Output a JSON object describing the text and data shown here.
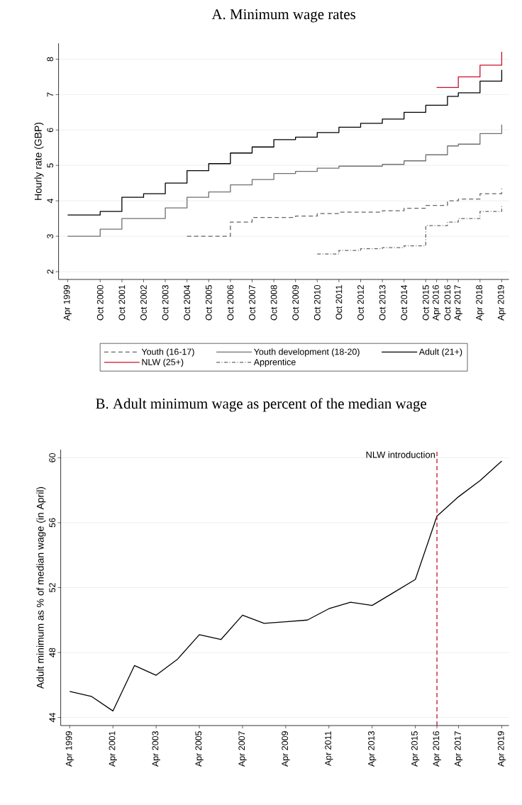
{
  "chart_data": [
    {
      "type": "step",
      "title": "A. Minimum wage rates",
      "ylabel": "Hourly rate (GBP)",
      "xlim": [
        "1998-11",
        "2019-08"
      ],
      "ylim": [
        1.78,
        8.45
      ],
      "yticks": [
        2,
        3,
        4,
        5,
        6,
        7,
        8
      ],
      "xticks": [
        {
          "value": "1999-04",
          "label": "Apr 1999"
        },
        {
          "value": "2000-10",
          "label": "Oct 2000"
        },
        {
          "value": "2001-10",
          "label": "Oct 2001"
        },
        {
          "value": "2002-10",
          "label": "Oct 2002"
        },
        {
          "value": "2003-10",
          "label": "Oct 2003"
        },
        {
          "value": "2004-10",
          "label": "Oct 2004"
        },
        {
          "value": "2005-10",
          "label": "Oct 2005"
        },
        {
          "value": "2006-10",
          "label": "Oct 2006"
        },
        {
          "value": "2007-10",
          "label": "Oct 2007"
        },
        {
          "value": "2008-10",
          "label": "Oct 2008"
        },
        {
          "value": "2009-10",
          "label": "Oct 2009"
        },
        {
          "value": "2010-10",
          "label": "Oct 2010"
        },
        {
          "value": "2011-10",
          "label": "Oct 2011"
        },
        {
          "value": "2012-10",
          "label": "Oct 2012"
        },
        {
          "value": "2013-10",
          "label": "Oct 2013"
        },
        {
          "value": "2014-10",
          "label": "Oct 2014"
        },
        {
          "value": "2015-10",
          "label": "Oct 2015"
        },
        {
          "value": "2016-04",
          "label": "Apr 2016"
        },
        {
          "value": "2016-10",
          "label": "Oct 2016"
        },
        {
          "value": "2017-04",
          "label": "Apr 2017"
        },
        {
          "value": "2018-04",
          "label": "Apr 2018"
        },
        {
          "value": "2019-04",
          "label": "Apr 2019"
        }
      ],
      "grid": "y",
      "legend": "bottom",
      "series": [
        {
          "name": "Youth (16-17)",
          "color": "#666666",
          "line_style": "dashed",
          "x": [
            "2004-10",
            "2006-10",
            "2007-10",
            "2009-10",
            "2010-10",
            "2011-10",
            "2013-10",
            "2014-10",
            "2015-10",
            "2016-10",
            "2017-04",
            "2018-04",
            "2019-04"
          ],
          "values": [
            3.0,
            3.4,
            3.53,
            3.57,
            3.64,
            3.68,
            3.72,
            3.79,
            3.87,
            4.0,
            4.05,
            4.2,
            4.35
          ]
        },
        {
          "name": "Youth development (18-20)",
          "color": "#707070",
          "line_style": "solid",
          "x": [
            "1999-04",
            "2000-10",
            "2001-10",
            "2003-10",
            "2004-10",
            "2005-10",
            "2006-10",
            "2007-10",
            "2008-10",
            "2009-10",
            "2010-10",
            "2011-10",
            "2013-10",
            "2014-10",
            "2015-10",
            "2016-10",
            "2017-04",
            "2018-04",
            "2019-04"
          ],
          "values": [
            3.0,
            3.2,
            3.5,
            3.8,
            4.1,
            4.25,
            4.45,
            4.6,
            4.77,
            4.83,
            4.92,
            4.98,
            5.03,
            5.13,
            5.3,
            5.55,
            5.6,
            5.9,
            6.15
          ]
        },
        {
          "name": "Adult (21+)",
          "color": "#000000",
          "line_style": "solid",
          "x": [
            "1999-04",
            "2000-10",
            "2001-10",
            "2002-10",
            "2003-10",
            "2004-10",
            "2005-10",
            "2006-10",
            "2007-10",
            "2008-10",
            "2009-10",
            "2010-10",
            "2011-10",
            "2012-10",
            "2013-10",
            "2014-10",
            "2015-10",
            "2016-10",
            "2017-04",
            "2018-04",
            "2019-04"
          ],
          "values": [
            3.6,
            3.7,
            4.1,
            4.2,
            4.5,
            4.85,
            5.05,
            5.35,
            5.52,
            5.73,
            5.8,
            5.93,
            6.08,
            6.19,
            6.31,
            6.5,
            6.7,
            6.95,
            7.05,
            7.38,
            7.7
          ]
        },
        {
          "name": "NLW (25+)",
          "color": "#c8102e",
          "line_style": "solid",
          "x": [
            "2016-04",
            "2017-04",
            "2018-04",
            "2019-04"
          ],
          "values": [
            7.2,
            7.5,
            7.83,
            8.21
          ]
        },
        {
          "name": "Apprentice",
          "color": "#666666",
          "line_style": "dashdot",
          "x": [
            "2010-10",
            "2011-10",
            "2012-10",
            "2013-10",
            "2014-10",
            "2015-10",
            "2016-10",
            "2017-04",
            "2018-04",
            "2019-04"
          ],
          "values": [
            2.5,
            2.6,
            2.65,
            2.68,
            2.73,
            3.3,
            3.4,
            3.5,
            3.7,
            3.9
          ]
        }
      ]
    },
    {
      "type": "line",
      "title": "B. Adult minimum wage as percent of the median wage",
      "ylabel": "Adult minimum as % of median wage (in April)",
      "xlim": [
        "1998-11",
        "2019-08"
      ],
      "ylim": [
        43.5,
        60.5
      ],
      "yticks": [
        44,
        48,
        52,
        56,
        60
      ],
      "xticks": [
        {
          "value": "1999-04",
          "label": "Apr 1999"
        },
        {
          "value": "2001-04",
          "label": "Apr 2001"
        },
        {
          "value": "2003-04",
          "label": "Apr 2003"
        },
        {
          "value": "2005-04",
          "label": "Apr 2005"
        },
        {
          "value": "2007-04",
          "label": "Apr 2007"
        },
        {
          "value": "2009-04",
          "label": "Apr 2009"
        },
        {
          "value": "2011-04",
          "label": "Apr 2011"
        },
        {
          "value": "2013-04",
          "label": "Apr 2013"
        },
        {
          "value": "2015-04",
          "label": "Apr 2015"
        },
        {
          "value": "2016-04",
          "label": "Apr 2016"
        },
        {
          "value": "2017-04",
          "label": "Apr 2017"
        },
        {
          "value": "2019-04",
          "label": "Apr 2019"
        }
      ],
      "grid": "y",
      "x": [
        "1999-04",
        "2000-04",
        "2001-04",
        "2002-04",
        "2003-04",
        "2004-04",
        "2005-04",
        "2006-04",
        "2007-04",
        "2008-04",
        "2009-04",
        "2010-04",
        "2011-04",
        "2012-04",
        "2013-04",
        "2014-04",
        "2015-04",
        "2016-04",
        "2017-04",
        "2018-04",
        "2019-04"
      ],
      "series": [
        {
          "color": "#000000",
          "line_style": "solid",
          "values": [
            45.6,
            45.3,
            44.4,
            47.2,
            46.6,
            47.6,
            49.1,
            48.8,
            50.3,
            49.8,
            49.9,
            50.0,
            50.7,
            51.1,
            50.9,
            51.7,
            52.5,
            56.4,
            57.6,
            58.6,
            59.8
          ]
        }
      ],
      "ref_lines": [
        {
          "axis": "x",
          "value": "2016-04",
          "label": "NLW introduction",
          "color": "#c8102e",
          "line_style": "dashed"
        }
      ]
    }
  ]
}
